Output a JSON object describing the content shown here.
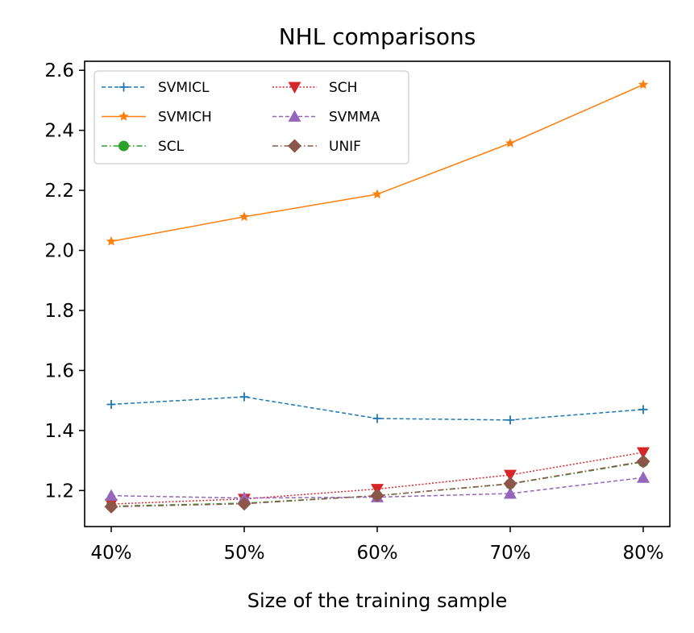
{
  "chart_data": {
    "type": "line",
    "title": "NHL comparisons",
    "xlabel": "Size of the training sample",
    "ylabel": "",
    "categories": [
      "40%",
      "50%",
      "60%",
      "70%",
      "80%"
    ],
    "ylim": [
      1.08,
      2.63
    ],
    "yticks": [
      "1.2",
      "1.4",
      "1.6",
      "1.8",
      "2.0",
      "2.2",
      "2.4",
      "2.6"
    ],
    "grid": false,
    "legend_position": "top-left",
    "series": [
      {
        "name": "SVMICL",
        "values": [
          1.487,
          1.512,
          1.44,
          1.435,
          1.47
        ],
        "color": "#1f77b4",
        "marker": "plus",
        "dash": "dashed"
      },
      {
        "name": "SVMICH",
        "values": [
          2.03,
          2.112,
          2.187,
          2.357,
          2.552
        ],
        "color": "#ff7f0e",
        "marker": "star",
        "dash": "solid"
      },
      {
        "name": "SCL",
        "values": [
          1.148,
          1.158,
          1.183,
          1.222,
          1.295
        ],
        "color": "#2ca02c",
        "marker": "circle",
        "dash": "dashdot"
      },
      {
        "name": "SCH",
        "values": [
          1.155,
          1.172,
          1.205,
          1.252,
          1.327
        ],
        "color": "#d62728",
        "marker": "triangle-down",
        "dash": "dotted"
      },
      {
        "name": "SVMMA",
        "values": [
          1.183,
          1.175,
          1.178,
          1.19,
          1.243
        ],
        "color": "#9467bd",
        "marker": "triangle-up",
        "dash": "dashed"
      },
      {
        "name": "UNIF",
        "values": [
          1.146,
          1.156,
          1.183,
          1.223,
          1.297
        ],
        "color": "#8c564b",
        "marker": "diamond",
        "dash": "dashdot"
      }
    ]
  }
}
